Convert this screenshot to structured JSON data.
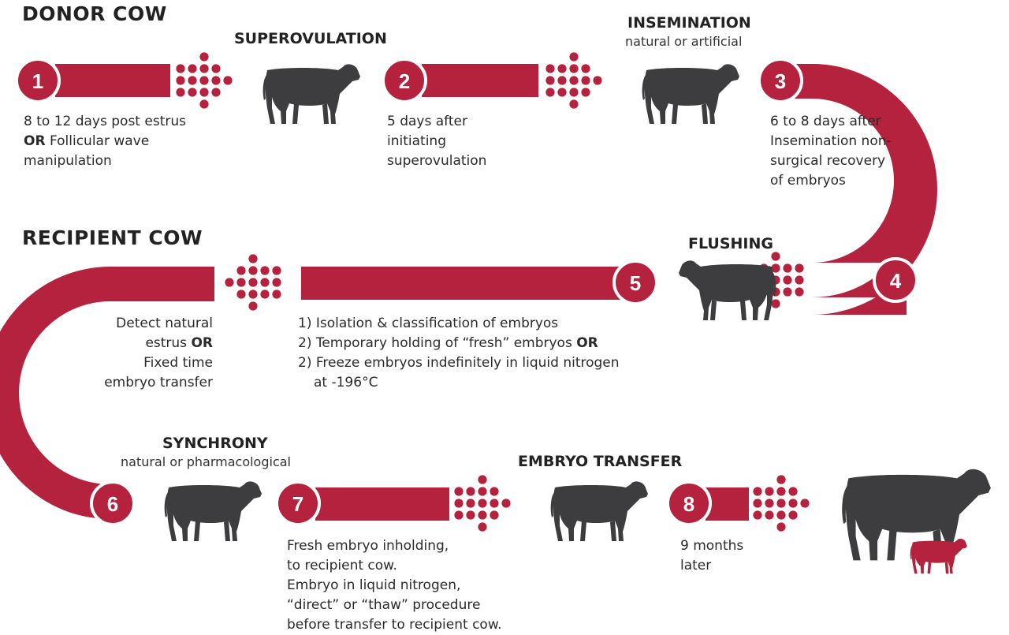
{
  "colors": {
    "accent": "#b5223e",
    "cow": "#3d3d3f",
    "text": "#222222"
  },
  "sections": {
    "donor": "DONOR COW",
    "recipient": "RECIPIENT COW"
  },
  "stages": {
    "superovulation": {
      "label": "SUPEROVULATION"
    },
    "insemination": {
      "label": "INSEMINATION",
      "sub": "natural or artificial"
    },
    "flushing": {
      "label": "FLUSHING"
    },
    "synchrony": {
      "label": "SYNCHRONY",
      "sub": "natural or pharmacological"
    },
    "embryo_transfer": {
      "label": "EMBRYO TRANSFER"
    }
  },
  "steps": [
    {
      "number": "1"
    },
    {
      "number": "2"
    },
    {
      "number": "3"
    },
    {
      "number": "4"
    },
    {
      "number": "5"
    },
    {
      "number": "6"
    },
    {
      "number": "7"
    },
    {
      "number": "8"
    }
  ],
  "descriptions": {
    "step1": [
      "8 to 12 days post estrus",
      "Follicular wave",
      "manipulation"
    ],
    "step2": [
      "5 days after",
      "initiating",
      "superovulation"
    ],
    "step3": [
      "6 to 8 days after",
      "Insemination non-",
      "surgical recovery",
      "of embryos"
    ],
    "step5": [
      "1) Isolation & classification of embryos",
      "2) Temporary holding of “fresh” embryos",
      "2) Freeze embryos indefinitely in liquid nitrogen",
      "at -196°C"
    ],
    "step6": [
      "Detect natural",
      "estrus",
      "Fixed time",
      "embryo transfer"
    ],
    "step7": [
      "Fresh embryo inholding,",
      "to recipient cow.",
      "Embryo in liquid nitrogen,",
      "“direct” or “thaw” procedure",
      "before transfer to recipient cow."
    ],
    "step8": [
      "9 months",
      "later"
    ],
    "or_word": "OR"
  },
  "icons": {
    "cow": "cow-icon",
    "calf": "calf-icon",
    "arrow": "dot-arrow-icon"
  }
}
